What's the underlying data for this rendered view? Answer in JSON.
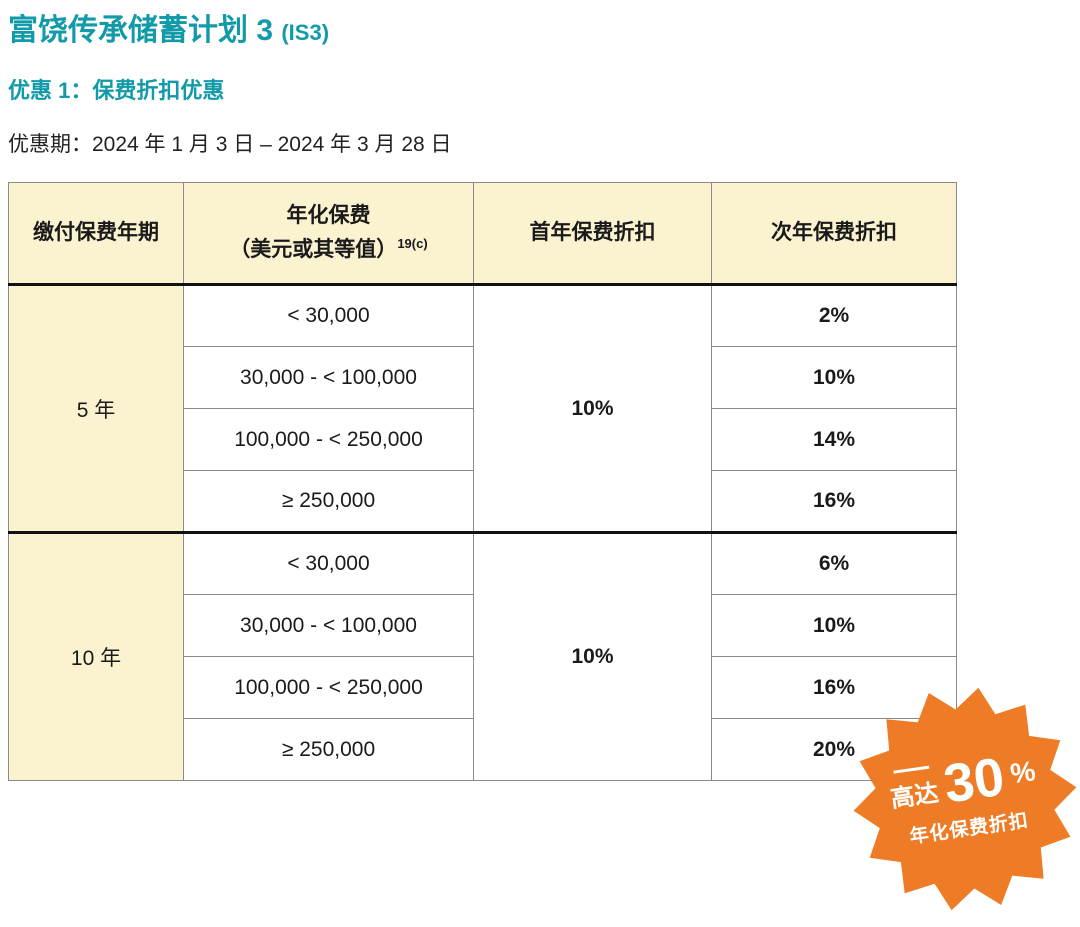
{
  "page": {
    "title": "富饶传承储蓄计划 3 ",
    "title_suffix": "(IS3)",
    "subtitle": "优惠 1：保费折扣优惠",
    "period": "优惠期：2024 年 1 月 3 日 – 2024 年 3 月 28 日"
  },
  "colors": {
    "teal": "#129AA9",
    "orange": "#EE7C26",
    "cream": "#FBF2D0",
    "dark_text": "#1A1A1A",
    "badge_fill": "#EE7C26"
  },
  "table": {
    "col1_header": "缴付保费年期",
    "col2_header_line1": "年化保费",
    "col2_header_line2": "（美元或其等值）",
    "col2_header_sup": "19(c)",
    "col3_header": "首年保费折扣",
    "col4_header": "次年保费折扣",
    "groups": [
      {
        "term": "5 年",
        "first_year_discount": "10%",
        "rows": [
          {
            "band": "< 30,000",
            "second_year": "2%"
          },
          {
            "band": "30,000 - < 100,000",
            "second_year": "10%"
          },
          {
            "band": "100,000 - < 250,000",
            "second_year": "14%"
          },
          {
            "band": "≥ 250,000",
            "second_year": "16%"
          }
        ]
      },
      {
        "term": "10 年",
        "first_year_discount": "10%",
        "rows": [
          {
            "band": "< 30,000",
            "second_year": "6%"
          },
          {
            "band": "30,000 - < 100,000",
            "second_year": "10%"
          },
          {
            "band": "100,000 - < 250,000",
            "second_year": "16%"
          },
          {
            "band": "≥ 250,000",
            "second_year": "20%"
          }
        ]
      }
    ]
  },
  "badge": {
    "prefix": "高达",
    "value": "30",
    "percent": "%",
    "caption": "年化保费折扣"
  }
}
